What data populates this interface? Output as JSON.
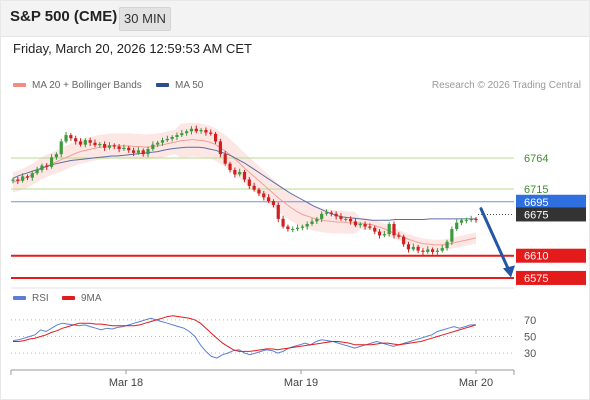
{
  "header": {
    "symbol": "S&P 500 (CME)",
    "timeframe": "30 MIN",
    "datetime": "Friday, March 20, 2026 12:59:53 AM CET"
  },
  "legend": {
    "ma20_label": "MA 20 + Bollinger Bands",
    "ma20_color": "#f28c82",
    "ma50_label": "MA 50",
    "ma50_color": "#2a4f8c",
    "credit": "Research © 2026 Trading Central"
  },
  "rsi_legend": {
    "rsi_label": "RSI",
    "rsi_color": "#5b7fd6",
    "ma_label": "9MA",
    "ma_color": "#e31b1b"
  },
  "colors": {
    "up_candle": "#3c9a3c",
    "down_candle": "#d11f1f",
    "support": "#e31b1b",
    "resistance": "#b8d98a",
    "current": "#2f6fe0",
    "last": "#333333",
    "arrow": "#2555a5",
    "band_fill": "#fde3e1"
  },
  "chart_data": [
    {
      "type": "candlestick",
      "x_labels": [
        "Mar 18",
        "Mar 19",
        "Mar 20"
      ],
      "ylim": [
        6556,
        6860
      ],
      "levels": [
        {
          "value": 6764,
          "label": "6764",
          "kind": "resistance"
        },
        {
          "value": 6715,
          "label": "6715",
          "kind": "resistance"
        },
        {
          "value": 6695,
          "label": "6695",
          "kind": "current"
        },
        {
          "value": 6675,
          "label": "6675",
          "kind": "last"
        },
        {
          "value": 6610,
          "label": "6610",
          "kind": "support"
        },
        {
          "value": 6575,
          "label": "6575",
          "kind": "support"
        }
      ],
      "close": [
        6730,
        6728,
        6735,
        6733,
        6740,
        6745,
        6752,
        6750,
        6765,
        6770,
        6790,
        6800,
        6795,
        6790,
        6785,
        6792,
        6788,
        6784,
        6786,
        6780,
        6784,
        6782,
        6778,
        6780,
        6776,
        6772,
        6776,
        6770,
        6778,
        6785,
        6788,
        6792,
        6794,
        6797,
        6800,
        6803,
        6806,
        6810,
        6806,
        6808,
        6804,
        6802,
        6790,
        6770,
        6755,
        6745,
        6738,
        6742,
        6730,
        6720,
        6714,
        6708,
        6702,
        6696,
        6690,
        6668,
        6656,
        6652,
        6652,
        6654,
        6656,
        6660,
        6664,
        6668,
        6676,
        6678,
        6676,
        6672,
        6668,
        6668,
        6664,
        6658,
        6660,
        6656,
        6654,
        6648,
        6642,
        6644,
        6660,
        6642,
        6640,
        6628,
        6620,
        6624,
        6618,
        6616,
        6620,
        6616,
        6618,
        6622,
        6632,
        6652,
        6662,
        6666,
        6666,
        6668,
        6666
      ],
      "series": [
        {
          "name": "MA 20",
          "values": [
            6726,
            6728,
            6732,
            6736,
            6742,
            6748,
            6752,
            6756,
            6760,
            6764,
            6768,
            6772,
            6775,
            6777,
            6779,
            6781,
            6782,
            6783,
            6783,
            6783,
            6783,
            6782,
            6782,
            6781,
            6782,
            6783,
            6785,
            6787,
            6789,
            6791,
            6792,
            6793,
            6792,
            6791,
            6789,
            6785,
            6779,
            6773,
            6765,
            6757,
            6748,
            6740,
            6732,
            6724,
            6716,
            6708,
            6700,
            6693,
            6686,
            6680,
            6675,
            6672,
            6669,
            6667,
            6665,
            6664,
            6663,
            6663,
            6662,
            6662,
            6661,
            6660,
            6659,
            6656,
            6653,
            6649,
            6645,
            6641,
            6637,
            6634,
            6631,
            6629,
            6628,
            6627,
            6627,
            6628,
            6630,
            6632,
            6634,
            6636,
            6638
          ]
        },
        {
          "name": "MA 50",
          "values": [
            6732,
            6736,
            6739,
            6742,
            6745,
            6748,
            6751,
            6754,
            6756,
            6758,
            6760,
            6761,
            6762,
            6763,
            6764,
            6765,
            6766,
            6767,
            6767,
            6768,
            6769,
            6770,
            6771,
            6772,
            6773,
            6774,
            6776,
            6778,
            6779,
            6780,
            6781,
            6781,
            6781,
            6780,
            6778,
            6776,
            6773,
            6770,
            6766,
            6761,
            6756,
            6750,
            6744,
            6738,
            6732,
            6726,
            6720,
            6714,
            6708,
            6703,
            6698,
            6693,
            6688,
            6684,
            6680,
            6676,
            6673,
            6671,
            6670,
            6669,
            6668,
            6667,
            6666,
            6666,
            6666,
            6666,
            6667,
            6667,
            6667,
            6667,
            6667,
            6667,
            6668,
            6668,
            6668,
            6668,
            6668,
            6668,
            6668,
            6668,
            6668
          ]
        }
      ]
    },
    {
      "type": "line",
      "yticks": [
        70,
        50,
        30
      ],
      "ylim": [
        12,
        88
      ],
      "series": [
        {
          "name": "RSI",
          "values": [
            45,
            46,
            48,
            50,
            52,
            58,
            56,
            60,
            64,
            66,
            65,
            64,
            63,
            64,
            62,
            60,
            58,
            60,
            59,
            61,
            62,
            64,
            66,
            68,
            70,
            72,
            70,
            68,
            66,
            64,
            62,
            60,
            56,
            50,
            40,
            32,
            26,
            24,
            28,
            30,
            33,
            34,
            30,
            28,
            30,
            32,
            34,
            33,
            30,
            32,
            36,
            38,
            40,
            42,
            40,
            44,
            46,
            45,
            44,
            42,
            40,
            38,
            36,
            38,
            40,
            42,
            44,
            42,
            40,
            38,
            40,
            42,
            44,
            46,
            48,
            50,
            52,
            56,
            58,
            60,
            62,
            60,
            62,
            64,
            64
          ]
        },
        {
          "name": "9MA",
          "values": [
            44,
            44,
            45,
            47,
            48,
            50,
            52,
            55,
            57,
            60,
            62,
            64,
            66,
            66,
            66,
            65,
            65,
            64,
            63,
            63,
            63,
            63,
            63,
            64,
            66,
            68,
            70,
            72,
            74,
            75,
            74,
            73,
            72,
            70,
            66,
            60,
            54,
            48,
            42,
            38,
            34,
            32,
            32,
            32,
            33,
            34,
            35,
            35,
            34,
            35,
            36,
            37,
            38,
            39,
            40,
            41,
            42,
            43,
            44,
            44,
            43,
            42,
            40,
            40,
            40,
            40,
            41,
            42,
            42,
            41,
            40,
            41,
            42,
            43,
            44,
            46,
            48,
            50,
            52,
            54,
            56,
            58,
            60,
            62,
            64
          ]
        }
      ]
    }
  ]
}
